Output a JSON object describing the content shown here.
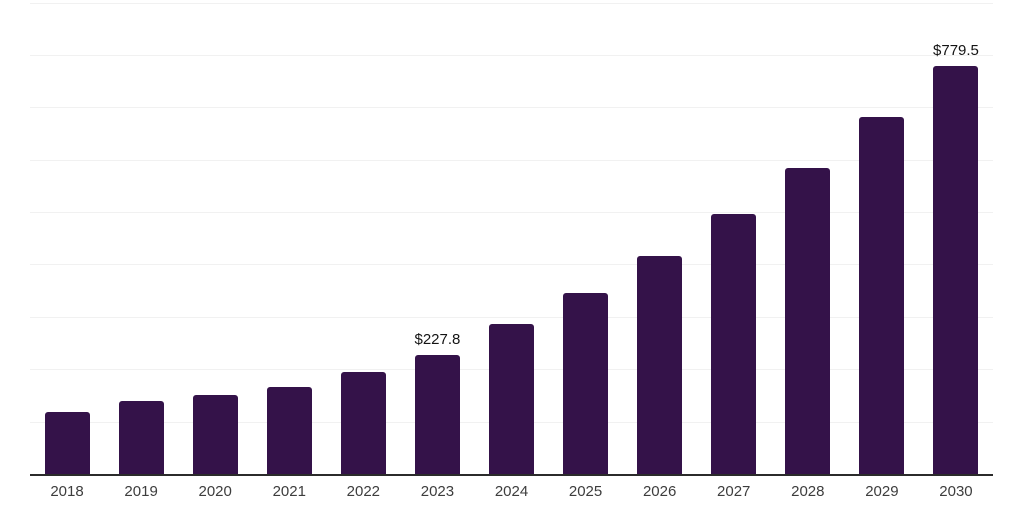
{
  "chart": {
    "background_color": "#ffffff",
    "bar_color": "#341249",
    "axis_line_color": "#2b2b2b",
    "gridline_color": "#f1f1f1",
    "tick_label_color": "#3d3d3d",
    "value_label_color": "#141414"
  },
  "chart_data": {
    "type": "bar",
    "title": "",
    "xlabel": "",
    "ylabel": "",
    "categories": [
      "2018",
      "2019",
      "2020",
      "2021",
      "2022",
      "2023",
      "2024",
      "2025",
      "2026",
      "2027",
      "2028",
      "2029",
      "2030"
    ],
    "values": [
      119,
      139,
      151,
      166,
      195,
      227.8,
      286,
      346,
      416,
      497,
      585,
      682,
      779.5
    ],
    "data_labels": [
      null,
      null,
      null,
      null,
      null,
      "$227.8",
      null,
      null,
      null,
      null,
      null,
      null,
      "$779.5"
    ],
    "ylim": [
      0,
      900
    ],
    "grid_interval": 100,
    "grid": true,
    "legend": false,
    "y_axis_labels_visible": false
  }
}
